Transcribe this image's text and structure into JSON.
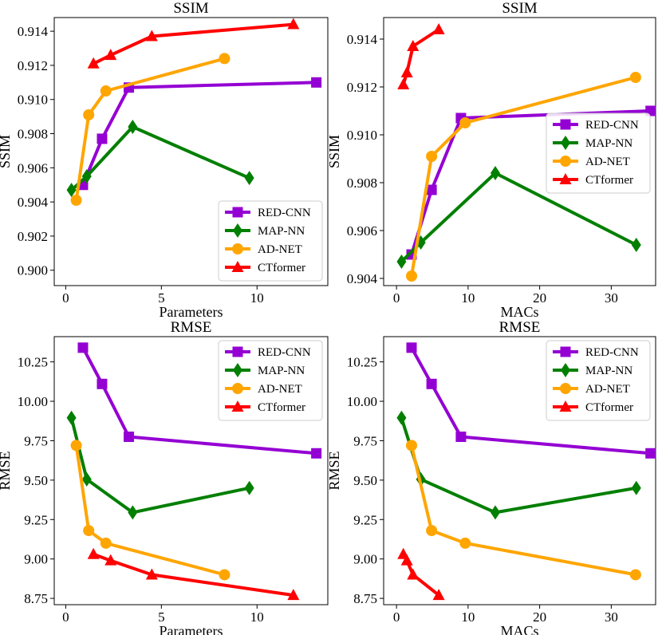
{
  "colors": {
    "RED-CNN": "#9400d3",
    "MAP-NN": "#007f00",
    "AD-NET": "#ffa500",
    "CTformer": "#ff0000"
  },
  "markers": {
    "RED-CNN": "square",
    "MAP-NN": "diamond",
    "AD-NET": "circle",
    "CTformer": "triangle"
  },
  "chart_data": [
    {
      "type": "line",
      "title": "SSIM",
      "xlabel": "Parameters",
      "ylabel": "SSIM",
      "xlim": [
        -0.6,
        13.7
      ],
      "ylim": [
        0.8991,
        0.9148
      ],
      "xticks": [
        0,
        5,
        10
      ],
      "yticks": [
        0.9,
        0.902,
        0.904,
        0.906,
        0.908,
        0.91,
        0.912,
        0.914
      ],
      "ytick_decimals": 3,
      "legend_position": "lower-right",
      "series": [
        {
          "name": "RED-CNN",
          "x": [
            0.9,
            1.9,
            3.3,
            13.1
          ],
          "y": [
            0.905,
            0.9077,
            0.9107,
            0.911
          ]
        },
        {
          "name": "MAP-NN",
          "x": [
            0.3,
            1.1,
            3.5,
            9.6
          ],
          "y": [
            0.9047,
            0.9055,
            0.9084,
            0.9054
          ]
        },
        {
          "name": "AD-NET",
          "x": [
            0.55,
            1.2,
            2.1,
            8.3
          ],
          "y": [
            0.9041,
            0.9091,
            0.9105,
            0.9124
          ]
        },
        {
          "name": "CTformer",
          "x": [
            1.45,
            2.35,
            4.5,
            11.9
          ],
          "y": [
            0.9121,
            0.9126,
            0.9137,
            0.9144
          ]
        }
      ]
    },
    {
      "type": "line",
      "title": "SSIM",
      "xlabel": "MACs",
      "ylabel": "SSIM",
      "xlim": [
        -1.8,
        36.2
      ],
      "ylim": [
        0.9037,
        0.9149
      ],
      "xticks": [
        0,
        10,
        20,
        30
      ],
      "yticks": [
        0.904,
        0.906,
        0.908,
        0.91,
        0.912,
        0.914
      ],
      "ytick_decimals": 3,
      "legend_position": "right",
      "series": [
        {
          "name": "RED-CNN",
          "x": [
            2.1,
            4.9,
            9.0,
            35.5
          ],
          "y": [
            0.905,
            0.9077,
            0.9107,
            0.911
          ]
        },
        {
          "name": "MAP-NN",
          "x": [
            0.7,
            3.4,
            13.8,
            33.5
          ],
          "y": [
            0.9047,
            0.9055,
            0.9084,
            0.9054
          ]
        },
        {
          "name": "AD-NET",
          "x": [
            2.1,
            4.9,
            9.6,
            33.4
          ],
          "y": [
            0.9041,
            0.9091,
            0.9105,
            0.9124
          ]
        },
        {
          "name": "CTformer",
          "x": [
            0.95,
            1.45,
            2.3,
            5.9
          ],
          "y": [
            0.9121,
            0.9126,
            0.9137,
            0.9144
          ]
        }
      ]
    },
    {
      "type": "line",
      "title": "RMSE",
      "xlabel": "Parameters",
      "ylabel": "RMSE",
      "xlim": [
        -0.6,
        13.7
      ],
      "ylim": [
        8.71,
        10.41
      ],
      "xticks": [
        0,
        5,
        10
      ],
      "yticks": [
        8.75,
        9.0,
        9.25,
        9.5,
        9.75,
        10.0,
        10.25
      ],
      "ytick_decimals": 2,
      "legend_position": "upper-right",
      "series": [
        {
          "name": "RED-CNN",
          "x": [
            0.9,
            1.9,
            3.3,
            13.1
          ],
          "y": [
            10.34,
            10.11,
            9.775,
            9.67
          ]
        },
        {
          "name": "MAP-NN",
          "x": [
            0.3,
            1.1,
            3.5,
            9.6
          ],
          "y": [
            9.895,
            9.505,
            9.295,
            9.45
          ]
        },
        {
          "name": "AD-NET",
          "x": [
            0.55,
            1.2,
            2.1,
            8.3
          ],
          "y": [
            9.72,
            9.18,
            9.1,
            8.9
          ]
        },
        {
          "name": "CTformer",
          "x": [
            1.45,
            2.35,
            4.5,
            11.9
          ],
          "y": [
            9.03,
            8.99,
            8.9,
            8.77
          ]
        }
      ]
    },
    {
      "type": "line",
      "title": "RMSE",
      "xlabel": "MACs",
      "ylabel": "RMSE",
      "xlim": [
        -1.8,
        36.2
      ],
      "ylim": [
        8.71,
        10.41
      ],
      "xticks": [
        0,
        10,
        20,
        30
      ],
      "yticks": [
        8.75,
        9.0,
        9.25,
        9.5,
        9.75,
        10.0,
        10.25
      ],
      "ytick_decimals": 2,
      "legend_position": "upper-right",
      "series": [
        {
          "name": "RED-CNN",
          "x": [
            2.1,
            4.9,
            9.0,
            35.5
          ],
          "y": [
            10.34,
            10.11,
            9.775,
            9.67
          ]
        },
        {
          "name": "MAP-NN",
          "x": [
            0.7,
            3.4,
            13.8,
            33.5
          ],
          "y": [
            9.895,
            9.505,
            9.295,
            9.45
          ]
        },
        {
          "name": "AD-NET",
          "x": [
            2.1,
            4.9,
            9.6,
            33.4
          ],
          "y": [
            9.72,
            9.18,
            9.1,
            8.9
          ]
        },
        {
          "name": "CTformer",
          "x": [
            0.95,
            1.45,
            2.3,
            5.9
          ],
          "y": [
            9.03,
            8.99,
            8.9,
            8.77
          ]
        }
      ]
    }
  ]
}
